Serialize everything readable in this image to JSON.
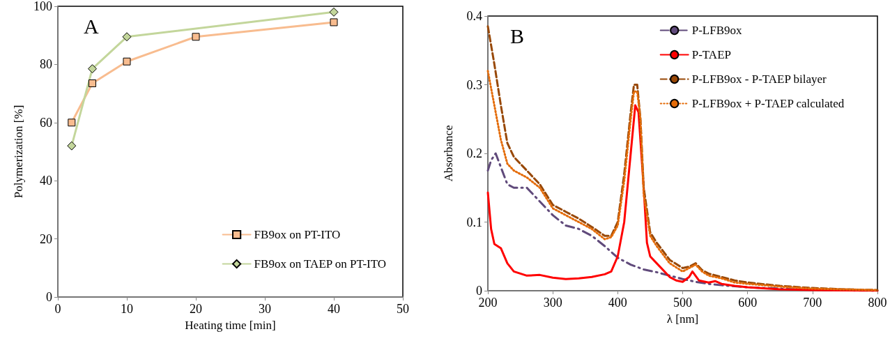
{
  "chart_data": [
    {
      "type": "line",
      "xlabel": "Heating time [min]",
      "ylabel": "Polymerization [%]",
      "annotations": [
        "A"
      ],
      "xlim": [
        0,
        50
      ],
      "xticks": [
        0,
        10,
        20,
        30,
        40,
        50
      ],
      "ylim": [
        0,
        100
      ],
      "yticks": [
        0,
        20,
        40,
        60,
        80,
        100
      ],
      "grid": false,
      "legend": "bottom right",
      "line_style": "solid",
      "series": [
        {
          "name": "FB9ox on PT-ITO",
          "color": "#f8bc8f",
          "marker": "square",
          "x": [
            2,
            5,
            10,
            20,
            40
          ],
          "values": [
            60,
            73.5,
            81,
            89.5,
            94.5
          ]
        },
        {
          "name": "FB9ox on TAEP on PT-ITO",
          "color": "#c3d69b",
          "marker": "diamond",
          "x": [
            2,
            5,
            10,
            40
          ],
          "values": [
            52,
            78.5,
            89.5,
            98
          ]
        }
      ]
    },
    {
      "type": "line",
      "xlabel": "λ [nm]",
      "ylabel": "Absorbance",
      "annotations": [
        "B"
      ],
      "xlim": [
        200,
        800
      ],
      "xticks": [
        200,
        300,
        400,
        500,
        600,
        700,
        800
      ],
      "ylim": [
        0,
        0.4
      ],
      "yticks": [
        0,
        0.1,
        0.2,
        0.3,
        0.4
      ],
      "grid": false,
      "legend": "top right",
      "marker": "none",
      "series": [
        {
          "name": "P-LFB9ox",
          "color": "#604a7b",
          "line_style": "dashdot",
          "x": [
            200,
            205,
            212,
            220,
            230,
            240,
            260,
            280,
            300,
            320,
            340,
            360,
            380,
            400,
            420,
            440,
            460,
            500,
            520,
            540,
            560,
            600,
            650,
            700,
            800
          ],
          "values": [
            0.175,
            0.19,
            0.2,
            0.18,
            0.155,
            0.15,
            0.15,
            0.13,
            0.11,
            0.095,
            0.09,
            0.08,
            0.065,
            0.048,
            0.038,
            0.031,
            0.027,
            0.017,
            0.013,
            0.01,
            0.008,
            0.005,
            0.003,
            0.001,
            0
          ]
        },
        {
          "name": "P-TAEP",
          "color": "#ff0000",
          "line_style": "solid",
          "x": [
            200,
            205,
            210,
            220,
            230,
            240,
            260,
            280,
            300,
            320,
            340,
            360,
            380,
            390,
            400,
            410,
            420,
            427,
            432,
            440,
            445,
            450,
            460,
            480,
            490,
            500,
            510,
            515,
            525,
            540,
            550,
            560,
            580,
            600,
            650,
            700,
            800
          ],
          "values": [
            0.143,
            0.09,
            0.068,
            0.062,
            0.04,
            0.028,
            0.022,
            0.023,
            0.019,
            0.017,
            0.018,
            0.02,
            0.024,
            0.028,
            0.05,
            0.1,
            0.2,
            0.27,
            0.26,
            0.15,
            0.07,
            0.05,
            0.04,
            0.02,
            0.015,
            0.013,
            0.02,
            0.028,
            0.015,
            0.012,
            0.014,
            0.01,
            0.007,
            0.005,
            0.002,
            0.001,
            0
          ]
        },
        {
          "name": "P-LFB9ox - P-TAEP bilayer",
          "color": "#984807",
          "line_style": "dashed",
          "x": [
            200,
            210,
            220,
            230,
            240,
            260,
            280,
            300,
            320,
            340,
            360,
            380,
            390,
            400,
            410,
            420,
            425,
            430,
            435,
            440,
            450,
            460,
            480,
            500,
            510,
            520,
            530,
            540,
            560,
            580,
            600,
            650,
            700,
            750,
            800
          ],
          "values": [
            0.385,
            0.33,
            0.27,
            0.215,
            0.195,
            0.175,
            0.155,
            0.125,
            0.115,
            0.105,
            0.093,
            0.08,
            0.08,
            0.1,
            0.17,
            0.26,
            0.3,
            0.3,
            0.25,
            0.15,
            0.085,
            0.07,
            0.045,
            0.033,
            0.035,
            0.04,
            0.03,
            0.025,
            0.02,
            0.015,
            0.012,
            0.007,
            0.004,
            0.002,
            0.001
          ]
        },
        {
          "name": "P-LFB9ox + P-TAEP calculated",
          "color": "#e46c0a",
          "line_style": "dotted",
          "x": [
            200,
            210,
            220,
            230,
            240,
            260,
            280,
            300,
            320,
            340,
            360,
            380,
            390,
            400,
            410,
            420,
            425,
            430,
            435,
            440,
            450,
            460,
            480,
            500,
            510,
            520,
            530,
            540,
            560,
            580,
            600,
            650,
            700,
            800
          ],
          "values": [
            0.32,
            0.27,
            0.22,
            0.185,
            0.175,
            0.165,
            0.15,
            0.12,
            0.11,
            0.1,
            0.09,
            0.075,
            0.078,
            0.095,
            0.16,
            0.25,
            0.29,
            0.29,
            0.25,
            0.14,
            0.08,
            0.065,
            0.04,
            0.028,
            0.033,
            0.038,
            0.028,
            0.022,
            0.018,
            0.012,
            0.01,
            0.006,
            0.003,
            0.001
          ]
        }
      ]
    }
  ]
}
